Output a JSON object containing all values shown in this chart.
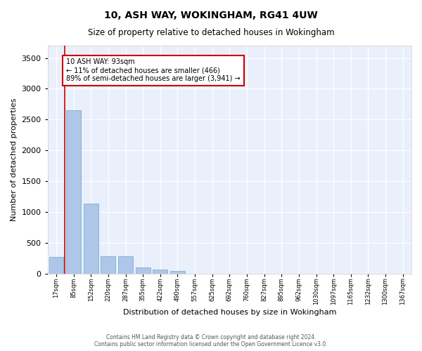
{
  "title": "10, ASH WAY, WOKINGHAM, RG41 4UW",
  "subtitle": "Size of property relative to detached houses in Wokingham",
  "xlabel": "Distribution of detached houses by size in Wokingham",
  "ylabel": "Number of detached properties",
  "bar_color": "#aec6e8",
  "bar_edge_color": "#7aafd4",
  "background_color": "#eaf0fb",
  "grid_color": "#ffffff",
  "annotation_box_color": "#cc0000",
  "property_line_color": "#cc0000",
  "property_bin": 1,
  "annotation_text": "10 ASH WAY: 93sqm\n← 11% of detached houses are smaller (466)\n89% of semi-detached houses are larger (3,941) →",
  "categories": [
    "17sqm",
    "85sqm",
    "152sqm",
    "220sqm",
    "287sqm",
    "355sqm",
    "422sqm",
    "490sqm",
    "557sqm",
    "625sqm",
    "692sqm",
    "760sqm",
    "827sqm",
    "895sqm",
    "962sqm",
    "1030sqm",
    "1097sqm",
    "1165sqm",
    "1232sqm",
    "1300sqm",
    "1367sqm"
  ],
  "values": [
    275,
    2650,
    1140,
    285,
    285,
    95,
    60,
    40,
    0,
    0,
    0,
    0,
    0,
    0,
    0,
    0,
    0,
    0,
    0,
    0,
    0
  ],
  "ylim": [
    0,
    3700
  ],
  "yticks": [
    0,
    500,
    1000,
    1500,
    2000,
    2500,
    3000,
    3500
  ],
  "footer_line1": "Contains HM Land Registry data © Crown copyright and database right 2024.",
  "footer_line2": "Contains public sector information licensed under the Open Government Licence v3.0."
}
